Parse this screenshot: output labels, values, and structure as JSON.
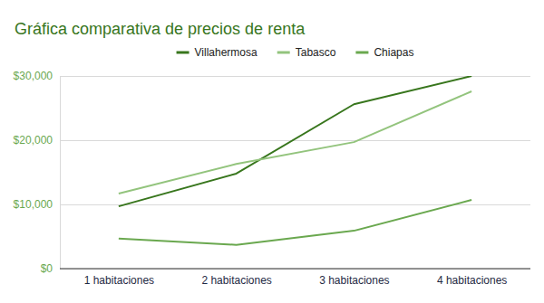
{
  "chart_data": {
    "type": "line",
    "title": "Gráfica comparativa de precios de renta",
    "categories": [
      "1 habitaciones",
      "2 habitaciones",
      "3 habitaciones",
      "4 habitaciones"
    ],
    "series": [
      {
        "name": "Villahermosa",
        "color": "#38761d",
        "values": [
          9700,
          14800,
          25600,
          30000
        ]
      },
      {
        "name": "Tabasco",
        "color": "#93c47d",
        "values": [
          11700,
          16300,
          19700,
          27600
        ]
      },
      {
        "name": "Chiapas",
        "color": "#6aa84f",
        "values": [
          4700,
          3700,
          5900,
          10700
        ]
      }
    ],
    "ylim": [
      0,
      30000
    ],
    "yticks": [
      {
        "value": 0,
        "label": "$0"
      },
      {
        "value": 10000,
        "label": "$10,000"
      },
      {
        "value": 20000,
        "label": "$20,000"
      },
      {
        "value": 30000,
        "label": "$30,000"
      }
    ],
    "grid": true,
    "legend": "top"
  }
}
